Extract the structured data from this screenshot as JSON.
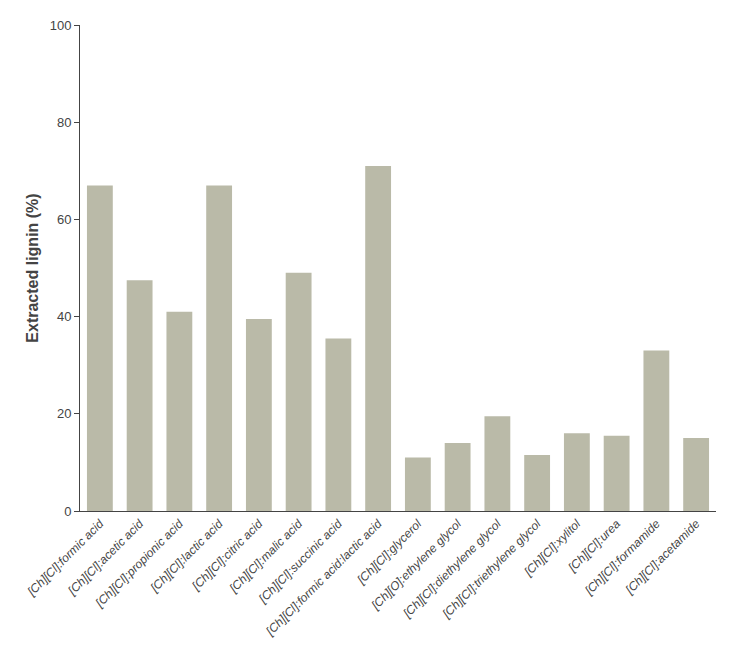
{
  "chart_data": {
    "type": "bar",
    "categories": [
      "[Ch][Cl]:formic acid",
      "[Ch][Cl]:acetic acid",
      "[Ch][Cl]:propionic acid",
      "[Ch][Cl]:lactic acid",
      "[Ch][Cl]:citric acid",
      "[Ch][Cl]:malic acid",
      "[Ch][Cl]:succinic acid",
      "[Ch][Cl]:formic acid:lactic acid",
      "[Ch][Cl]:glycerol",
      "[Ch][O]:ethylene glycol",
      "[Ch][Cl]:diethylene glycol",
      "[Ch][Cl]:triethylene glycol",
      "[Ch][Cl]:xylitol",
      "[Ch][Cl]:urea",
      "[Ch][Cl]:formamide",
      "[Ch][Cl]:acetamide"
    ],
    "values": [
      67.0,
      47.5,
      41.0,
      67.0,
      39.5,
      49.0,
      35.5,
      71.0,
      11.0,
      14.0,
      19.5,
      11.5,
      16.0,
      15.5,
      33.0,
      15.0
    ],
    "color": "#BABAA8",
    "ylabel": "Extracted lignin (%)",
    "ylim": [
      0,
      100
    ],
    "yticks": [
      0,
      20,
      40,
      60,
      80,
      100
    ],
    "grid": false
  }
}
